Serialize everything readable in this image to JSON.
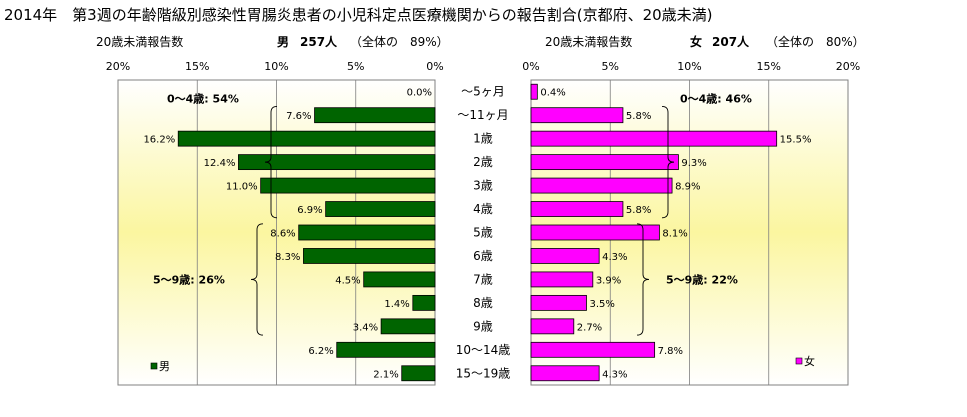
{
  "title": "2014年　第3週の年齢階級別感染性胃腸炎患者の小児科定点医療機関からの報告割合(京都府、20歳未満)",
  "left_header": {
    "axis_caption": "20歳未満報告数",
    "sex": "男",
    "count": "257人",
    "share": "（全体の　89%）"
  },
  "right_header": {
    "axis_caption": "20歳未満報告数",
    "sex": "女",
    "count": "207人",
    "share": "（全体の　80%）"
  },
  "colors": {
    "male": "#006400",
    "female": "#ff00ff",
    "plot_bg_edge": "#ffffff",
    "plot_bg_center": "#fbf6a0"
  },
  "chart_data": [
    {
      "type": "bar",
      "orientation": "horizontal",
      "direction": "right-to-left",
      "series": [
        {
          "name": "男",
          "values": [
            0.0,
            7.6,
            16.2,
            12.4,
            11.0,
            6.9,
            8.6,
            8.3,
            4.5,
            1.4,
            3.4,
            6.2,
            2.1
          ]
        }
      ],
      "value_labels": [
        "0.0%",
        "7.6%",
        "16.2%",
        "12.4%",
        "11.0%",
        "6.9%",
        "8.6%",
        "8.3%",
        "4.5%",
        "1.4%",
        "3.4%",
        "6.2%",
        "2.1%"
      ],
      "xlim": [
        0,
        20
      ],
      "ticks": [
        20,
        15,
        10,
        5,
        0
      ],
      "tick_labels": [
        "20%",
        "15%",
        "10%",
        "5%",
        "0%"
      ],
      "legend": "bottom-left",
      "annotations": [
        {
          "text": "0～4歳: 54%",
          "from": 1,
          "to": 5
        },
        {
          "text": "5～9歳: 26%",
          "from": 6,
          "to": 10
        }
      ]
    },
    {
      "type": "bar",
      "orientation": "horizontal",
      "direction": "left-to-right",
      "series": [
        {
          "name": "女",
          "values": [
            0.4,
            5.8,
            15.5,
            9.3,
            8.9,
            5.8,
            8.1,
            4.3,
            3.9,
            3.5,
            2.7,
            7.8,
            4.3
          ]
        }
      ],
      "value_labels": [
        "0.4%",
        "5.8%",
        "15.5%",
        "9.3%",
        "8.9%",
        "5.8%",
        "8.1%",
        "4.3%",
        "3.9%",
        "3.5%",
        "2.7%",
        "7.8%",
        "4.3%"
      ],
      "xlim": [
        0,
        20
      ],
      "ticks": [
        0,
        5,
        10,
        15,
        20
      ],
      "tick_labels": [
        "0%",
        "5%",
        "10%",
        "15%",
        "20%"
      ],
      "legend": "bottom-right",
      "annotations": [
        {
          "text": "0～4歳: 46%",
          "from": 1,
          "to": 5
        },
        {
          "text": "5～9歳: 22%",
          "from": 6,
          "to": 10
        }
      ]
    }
  ],
  "categories": [
    "～5ヶ月",
    "～11ヶ月",
    "1歳",
    "2歳",
    "3歳",
    "4歳",
    "5歳",
    "6歳",
    "7歳",
    "8歳",
    "9歳",
    "10～14歳",
    "15～19歳"
  ]
}
